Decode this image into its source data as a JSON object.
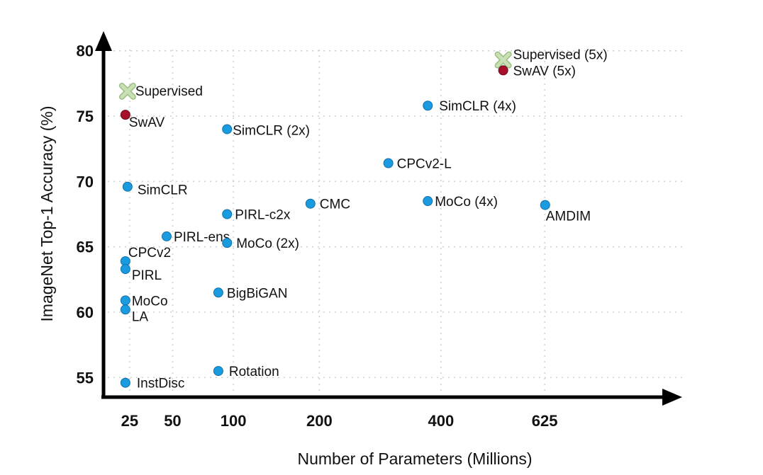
{
  "chart_data": {
    "type": "scatter",
    "title": "",
    "xlabel": "Number of Parameters (Millions)",
    "ylabel": "ImageNet Top-1 Accuracy (%)",
    "x_scale": "sqrt",
    "x_ticks": [
      25,
      50,
      100,
      200,
      400,
      625
    ],
    "y_ticks": [
      55,
      60,
      65,
      70,
      75,
      80
    ],
    "xlim": [
      14,
      1000
    ],
    "ylim": [
      53.5,
      81.5
    ],
    "grid": true,
    "colors": {
      "self_supervised": "#1a9be0",
      "swav": "#a8102a",
      "supervised": "#c8e0b4",
      "axis": "#000000"
    },
    "points": [
      {
        "name": "Supervised",
        "x": 24,
        "y": 76.9,
        "group": "supervised"
      },
      {
        "name": "SwAV",
        "x": 23,
        "y": 75.1,
        "group": "swav"
      },
      {
        "name": "SimCLR",
        "x": 24,
        "y": 69.6,
        "group": "self_supervised"
      },
      {
        "name": "CPCv2",
        "x": 23,
        "y": 63.9,
        "group": "self_supervised"
      },
      {
        "name": "PIRL",
        "x": 23,
        "y": 63.3,
        "group": "self_supervised"
      },
      {
        "name": "MoCo",
        "x": 23,
        "y": 60.9,
        "group": "self_supervised"
      },
      {
        "name": "LA",
        "x": 23,
        "y": 60.2,
        "group": "self_supervised"
      },
      {
        "name": "InstDisc",
        "x": 23,
        "y": 54.6,
        "group": "self_supervised"
      },
      {
        "name": "PIRL-ens",
        "x": 46,
        "y": 65.8,
        "group": "self_supervised"
      },
      {
        "name": "SimCLR (2x)",
        "x": 94,
        "y": 74.0,
        "group": "self_supervised"
      },
      {
        "name": "PIRL-c2x",
        "x": 94,
        "y": 67.5,
        "group": "self_supervised"
      },
      {
        "name": "MoCo (2x)",
        "x": 94,
        "y": 65.3,
        "group": "self_supervised"
      },
      {
        "name": "BigBiGAN",
        "x": 86,
        "y": 61.5,
        "group": "self_supervised"
      },
      {
        "name": "Rotation",
        "x": 86,
        "y": 55.5,
        "group": "self_supervised"
      },
      {
        "name": "CMC",
        "x": 188,
        "y": 68.3,
        "group": "self_supervised"
      },
      {
        "name": "CPCv2-L",
        "x": 305,
        "y": 71.4,
        "group": "self_supervised"
      },
      {
        "name": "SimCLR (4x)",
        "x": 375,
        "y": 75.8,
        "group": "self_supervised"
      },
      {
        "name": "MoCo (4x)",
        "x": 375,
        "y": 68.5,
        "group": "self_supervised"
      },
      {
        "name": "AMDIM",
        "x": 626,
        "y": 68.2,
        "group": "self_supervised"
      },
      {
        "name": "Supervised (5x)",
        "x": 529,
        "y": 79.3,
        "group": "supervised"
      },
      {
        "name": "SwAV (5x)",
        "x": 529,
        "y": 78.5,
        "group": "swav"
      }
    ]
  }
}
